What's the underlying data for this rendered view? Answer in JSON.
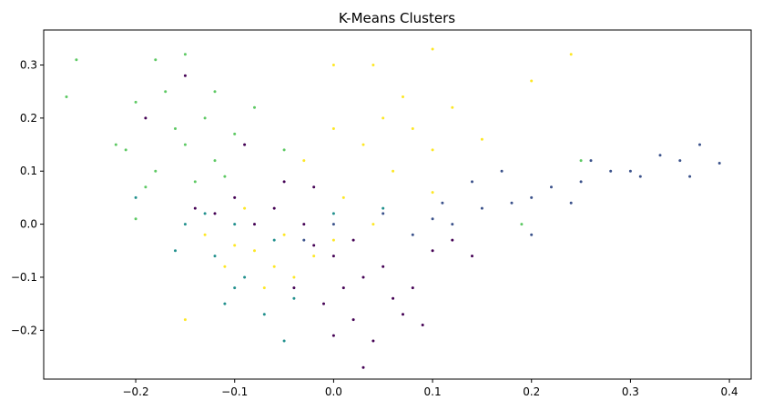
{
  "chart_data": {
    "type": "scatter",
    "title": "K-Means Clusters",
    "xlabel": "",
    "ylabel": "",
    "xlim": [
      -0.293,
      0.422
    ],
    "ylim": [
      -0.292,
      0.366
    ],
    "xticks": [
      -0.2,
      -0.1,
      0.0,
      0.1,
      0.2,
      0.3,
      0.4
    ],
    "xtick_labels": [
      "−0.2",
      "−0.1",
      "0.0",
      "0.1",
      "0.2",
      "0.3",
      "0.4"
    ],
    "yticks": [
      -0.2,
      -0.1,
      0.0,
      0.1,
      0.2,
      0.3
    ],
    "ytick_labels": [
      "−0.2",
      "−0.1",
      "0.0",
      "0.1",
      "0.2",
      "0.3"
    ],
    "grid": false,
    "legend": "none",
    "series": [
      {
        "color": "#440154",
        "points": [
          [
            -0.1,
            0.05
          ],
          [
            -0.12,
            0.02
          ],
          [
            -0.06,
            0.03
          ],
          [
            -0.03,
            0.0
          ],
          [
            0.0,
            -0.06
          ],
          [
            0.01,
            -0.12
          ],
          [
            -0.01,
            -0.15
          ],
          [
            0.03,
            -0.1
          ],
          [
            0.05,
            -0.08
          ],
          [
            0.02,
            -0.18
          ],
          [
            0.04,
            -0.22
          ],
          [
            0.06,
            -0.14
          ],
          [
            0.08,
            -0.12
          ],
          [
            0.1,
            -0.05
          ],
          [
            0.12,
            -0.03
          ],
          [
            -0.08,
            0.0
          ],
          [
            -0.14,
            0.03
          ],
          [
            -0.05,
            0.08
          ],
          [
            -0.02,
            -0.04
          ],
          [
            0.07,
            -0.17
          ],
          [
            -0.15,
            0.28
          ],
          [
            -0.19,
            0.2
          ],
          [
            0.03,
            -0.27
          ],
          [
            0.0,
            -0.21
          ],
          [
            -0.04,
            -0.12
          ],
          [
            0.09,
            -0.19
          ],
          [
            0.14,
            -0.06
          ],
          [
            -0.09,
            0.15
          ],
          [
            -0.02,
            0.07
          ],
          [
            0.02,
            -0.03
          ]
        ]
      },
      {
        "color": "#3b528b",
        "points": [
          [
            0.05,
            0.02
          ],
          [
            0.1,
            0.01
          ],
          [
            0.15,
            0.03
          ],
          [
            0.2,
            0.05
          ],
          [
            0.25,
            0.08
          ],
          [
            0.3,
            0.1
          ],
          [
            0.35,
            0.12
          ],
          [
            0.39,
            0.115
          ],
          [
            0.37,
            0.15
          ],
          [
            0.33,
            0.13
          ],
          [
            0.28,
            0.1
          ],
          [
            0.22,
            0.07
          ],
          [
            0.18,
            0.04
          ],
          [
            0.12,
            0.0
          ],
          [
            0.08,
            -0.02
          ],
          [
            0.0,
            0.0
          ],
          [
            -0.03,
            -0.03
          ],
          [
            0.14,
            0.08
          ],
          [
            0.26,
            0.12
          ],
          [
            0.31,
            0.09
          ],
          [
            0.36,
            0.09
          ],
          [
            0.2,
            -0.02
          ],
          [
            0.17,
            0.1
          ],
          [
            0.11,
            0.04
          ],
          [
            0.24,
            0.04
          ]
        ]
      },
      {
        "color": "#21908d",
        "points": [
          [
            -0.15,
            0.0
          ],
          [
            -0.12,
            -0.06
          ],
          [
            -0.1,
            -0.12
          ],
          [
            -0.07,
            -0.17
          ],
          [
            -0.05,
            -0.22
          ],
          [
            -0.13,
            0.02
          ],
          [
            -0.16,
            -0.05
          ],
          [
            -0.2,
            0.05
          ],
          [
            -0.1,
            0.0
          ],
          [
            -0.06,
            -0.03
          ],
          [
            0.0,
            0.02
          ],
          [
            -0.09,
            -0.1
          ],
          [
            -0.04,
            -0.14
          ],
          [
            0.05,
            0.03
          ],
          [
            -0.11,
            -0.15
          ]
        ]
      },
      {
        "color": "#5dc963",
        "points": [
          [
            -0.26,
            0.31
          ],
          [
            -0.27,
            0.24
          ],
          [
            -0.18,
            0.31
          ],
          [
            -0.2,
            0.23
          ],
          [
            -0.22,
            0.15
          ],
          [
            -0.18,
            0.1
          ],
          [
            -0.15,
            0.15
          ],
          [
            -0.13,
            0.2
          ],
          [
            -0.12,
            0.12
          ],
          [
            -0.16,
            0.18
          ],
          [
            -0.19,
            0.07
          ],
          [
            -0.14,
            0.08
          ],
          [
            -0.1,
            0.17
          ],
          [
            -0.2,
            0.01
          ],
          [
            -0.17,
            0.25
          ],
          [
            -0.12,
            0.25
          ],
          [
            -0.08,
            0.22
          ],
          [
            -0.05,
            0.14
          ],
          [
            -0.21,
            0.14
          ],
          [
            -0.11,
            0.09
          ],
          [
            -0.15,
            0.32
          ],
          [
            0.25,
            0.12
          ],
          [
            0.19,
            0.0
          ]
        ]
      },
      {
        "color": "#fde725",
        "points": [
          [
            0.0,
            0.3
          ],
          [
            0.04,
            0.3
          ],
          [
            0.07,
            0.24
          ],
          [
            0.1,
            0.33
          ],
          [
            0.05,
            0.2
          ],
          [
            0.03,
            0.15
          ],
          [
            0.08,
            0.18
          ],
          [
            0.12,
            0.22
          ],
          [
            0.0,
            0.18
          ],
          [
            -0.03,
            0.12
          ],
          [
            0.06,
            0.1
          ],
          [
            0.1,
            0.14
          ],
          [
            0.15,
            0.16
          ],
          [
            0.2,
            0.27
          ],
          [
            0.24,
            0.32
          ],
          [
            -0.08,
            -0.05
          ],
          [
            -0.06,
            -0.08
          ],
          [
            -0.1,
            -0.04
          ],
          [
            -0.04,
            -0.1
          ],
          [
            -0.07,
            -0.12
          ],
          [
            -0.02,
            -0.06
          ],
          [
            0.0,
            -0.03
          ],
          [
            0.04,
            0.0
          ],
          [
            0.1,
            0.06
          ],
          [
            -0.11,
            -0.08
          ],
          [
            -0.13,
            -0.02
          ],
          [
            -0.05,
            -0.02
          ],
          [
            -0.15,
            -0.18
          ],
          [
            -0.09,
            0.03
          ],
          [
            0.01,
            0.05
          ]
        ]
      }
    ]
  }
}
